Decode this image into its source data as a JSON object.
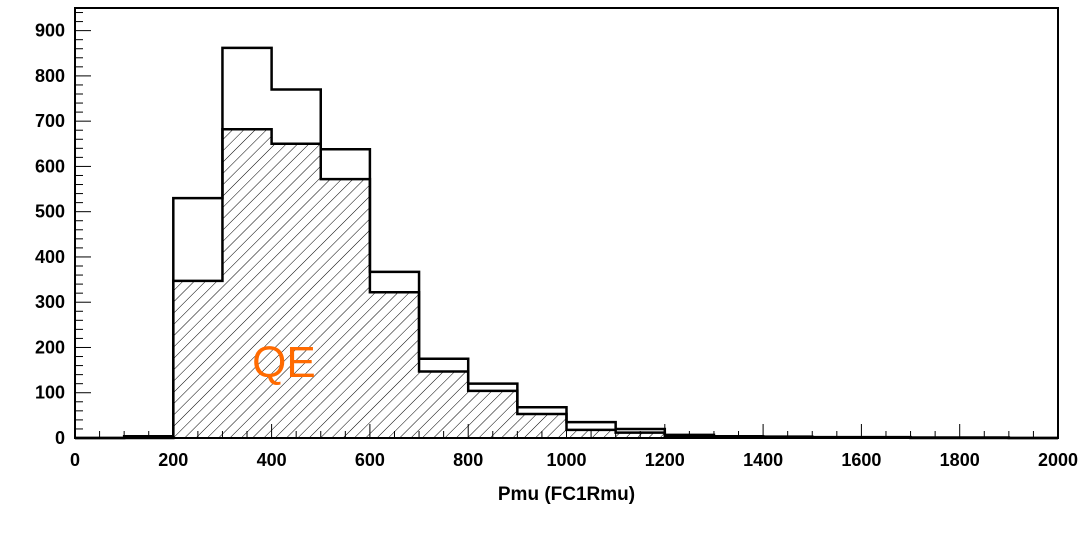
{
  "chart_data": {
    "type": "bar",
    "title": "",
    "xlabel": "Pmu (FC1Rmu)",
    "ylabel": "",
    "xlim": [
      0,
      2000
    ],
    "ylim": [
      0,
      950
    ],
    "x_ticks": [
      0,
      200,
      400,
      600,
      800,
      1000,
      1200,
      1400,
      1600,
      1800,
      2000
    ],
    "y_ticks": [
      0,
      100,
      200,
      300,
      400,
      500,
      600,
      700,
      800,
      900
    ],
    "bin_edges": [
      0,
      100,
      200,
      300,
      400,
      500,
      600,
      700,
      800,
      900,
      1000,
      1100,
      1200,
      1300,
      1400,
      1500,
      1600,
      1700,
      1800,
      1900,
      2000
    ],
    "grid": false,
    "legend": "none",
    "series": [
      {
        "style": "outline",
        "values": [
          0,
          4,
          530,
          862,
          770,
          638,
          367,
          175,
          120,
          68,
          35,
          20,
          7,
          4,
          3,
          2,
          2,
          1,
          1,
          0
        ]
      },
      {
        "style": "hatched",
        "values": [
          0,
          0,
          347,
          682,
          650,
          572,
          322,
          147,
          104,
          53,
          18,
          12,
          4,
          2,
          1,
          1,
          1,
          0,
          0,
          0
        ]
      }
    ],
    "annotations": [
      {
        "text": "QE",
        "x": 450,
        "y": 170,
        "color": "#ff6a00"
      }
    ]
  }
}
